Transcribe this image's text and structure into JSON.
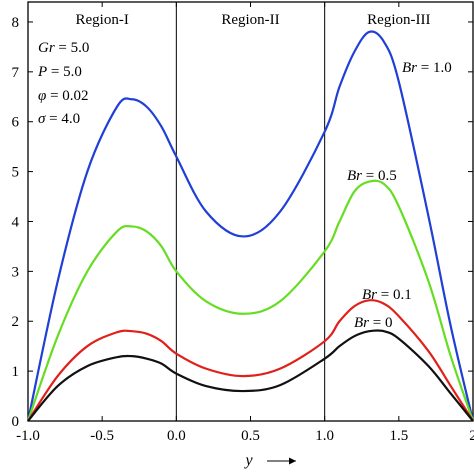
{
  "chart_data": {
    "type": "line",
    "xlabel": "y",
    "xlim": [
      -1.0,
      2.0
    ],
    "ylim": [
      0,
      8.4
    ],
    "x_ticks": [
      -1.0,
      -0.5,
      0.0,
      0.5,
      1.0,
      1.5,
      2.0
    ],
    "x_tick_labels": [
      "-1.0",
      "-0.5",
      "0.0",
      "0.5",
      "1.0",
      "1.5",
      "2"
    ],
    "y_ticks": [
      0,
      1,
      2,
      3,
      4,
      5,
      6,
      7,
      8
    ],
    "y_tick_labels": [
      "0",
      "1",
      "2",
      "3",
      "4",
      "5",
      "6",
      "7",
      "8"
    ],
    "region_boundaries": [
      0.0,
      1.0
    ],
    "regions": [
      "Region-I",
      "Region-II",
      "Region-III"
    ],
    "parameters": [
      {
        "symbol": "Gr",
        "value": "5.0"
      },
      {
        "symbol": "P",
        "value": "5.0"
      },
      {
        "symbol": "φ",
        "value": "0.02"
      },
      {
        "symbol": "σ",
        "value": "4.0"
      }
    ],
    "series": [
      {
        "name": "Br = 1.0",
        "param": "Br",
        "param_value": "1.0",
        "color": "#1f3fd6",
        "x": [
          -1.0,
          -0.8,
          -0.6,
          -0.4,
          -0.3,
          -0.2,
          -0.1,
          0.0,
          0.2,
          0.45,
          0.7,
          1.0,
          1.1,
          1.2,
          1.3,
          1.4,
          1.5,
          1.7,
          1.85,
          2.0
        ],
        "y": [
          0.0,
          2.8,
          5.0,
          6.3,
          6.45,
          6.3,
          5.9,
          5.3,
          4.2,
          3.7,
          4.2,
          5.8,
          6.7,
          7.4,
          7.8,
          7.6,
          6.8,
          4.1,
          1.9,
          0.0
        ]
      },
      {
        "name": "Br = 0.5",
        "param": "Br",
        "param_value": "0.5",
        "color": "#66dd22",
        "x": [
          -1.0,
          -0.8,
          -0.6,
          -0.4,
          -0.3,
          -0.2,
          -0.1,
          0.0,
          0.2,
          0.45,
          0.7,
          1.0,
          1.1,
          1.2,
          1.3,
          1.4,
          1.5,
          1.7,
          1.85,
          2.0
        ],
        "y": [
          0.0,
          1.7,
          3.0,
          3.8,
          3.9,
          3.8,
          3.5,
          3.0,
          2.4,
          2.15,
          2.4,
          3.4,
          4.0,
          4.6,
          4.8,
          4.75,
          4.3,
          2.8,
          1.3,
          0.0
        ]
      },
      {
        "name": "Br = 0.1",
        "param": "Br",
        "param_value": "0.1",
        "color": "#e0201a",
        "x": [
          -1.0,
          -0.8,
          -0.6,
          -0.4,
          -0.3,
          -0.2,
          -0.1,
          0.0,
          0.2,
          0.45,
          0.7,
          1.0,
          1.1,
          1.2,
          1.3,
          1.4,
          1.5,
          1.7,
          1.85,
          2.0
        ],
        "y": [
          0.0,
          0.9,
          1.5,
          1.78,
          1.8,
          1.75,
          1.6,
          1.35,
          1.05,
          0.9,
          1.05,
          1.6,
          2.0,
          2.3,
          2.42,
          2.35,
          2.1,
          1.4,
          0.7,
          0.0
        ]
      },
      {
        "name": "Br = 0",
        "param": "Br",
        "param_value": "0",
        "color": "#111111",
        "x": [
          -1.0,
          -0.8,
          -0.6,
          -0.4,
          -0.3,
          -0.2,
          -0.1,
          0.0,
          0.2,
          0.45,
          0.7,
          1.0,
          1.1,
          1.2,
          1.3,
          1.4,
          1.5,
          1.7,
          1.85,
          2.0
        ],
        "y": [
          0.0,
          0.7,
          1.1,
          1.28,
          1.3,
          1.25,
          1.15,
          0.95,
          0.7,
          0.6,
          0.72,
          1.25,
          1.5,
          1.7,
          1.8,
          1.8,
          1.65,
          1.1,
          0.55,
          0.0
        ]
      }
    ]
  }
}
